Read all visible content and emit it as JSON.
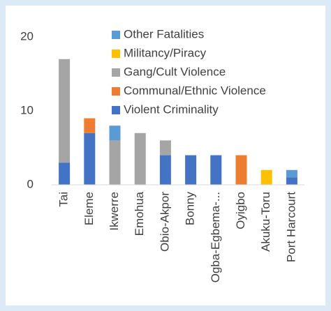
{
  "chart_data": {
    "type": "stacked_bar",
    "categories": [
      "Tai",
      "Eleme",
      "Ikwerre",
      "Emohua",
      "Obio-Akpor",
      "Bonny",
      "Ogba-Egbema-...",
      "Oyigbo",
      "Akuku-Toru",
      "Port Harcourt"
    ],
    "series": [
      {
        "name": "Violent Criminality",
        "color": "#4472c4",
        "values": [
          3,
          7,
          0,
          0,
          4,
          4,
          4,
          0,
          0,
          1
        ]
      },
      {
        "name": "Communal/Ethnic Violence",
        "color": "#ed7d31",
        "values": [
          0,
          2,
          0,
          0,
          0,
          0,
          0,
          4,
          0,
          0
        ]
      },
      {
        "name": "Gang/Cult Violence",
        "color": "#a5a5a5",
        "values": [
          14,
          0,
          6,
          7,
          2,
          0,
          0,
          0,
          0,
          0
        ]
      },
      {
        "name": "Militancy/Piracy",
        "color": "#ffc000",
        "values": [
          0,
          0,
          0,
          0,
          0,
          0,
          0,
          0,
          2,
          0
        ]
      },
      {
        "name": "Other Fatalities",
        "color": "#5b9bd5",
        "values": [
          0,
          0,
          2,
          0,
          0,
          0,
          0,
          0,
          0,
          1
        ]
      }
    ],
    "ylim": [
      0,
      20
    ],
    "yticks": [
      0,
      10,
      20
    ],
    "grid": false,
    "legend": "top-right"
  }
}
